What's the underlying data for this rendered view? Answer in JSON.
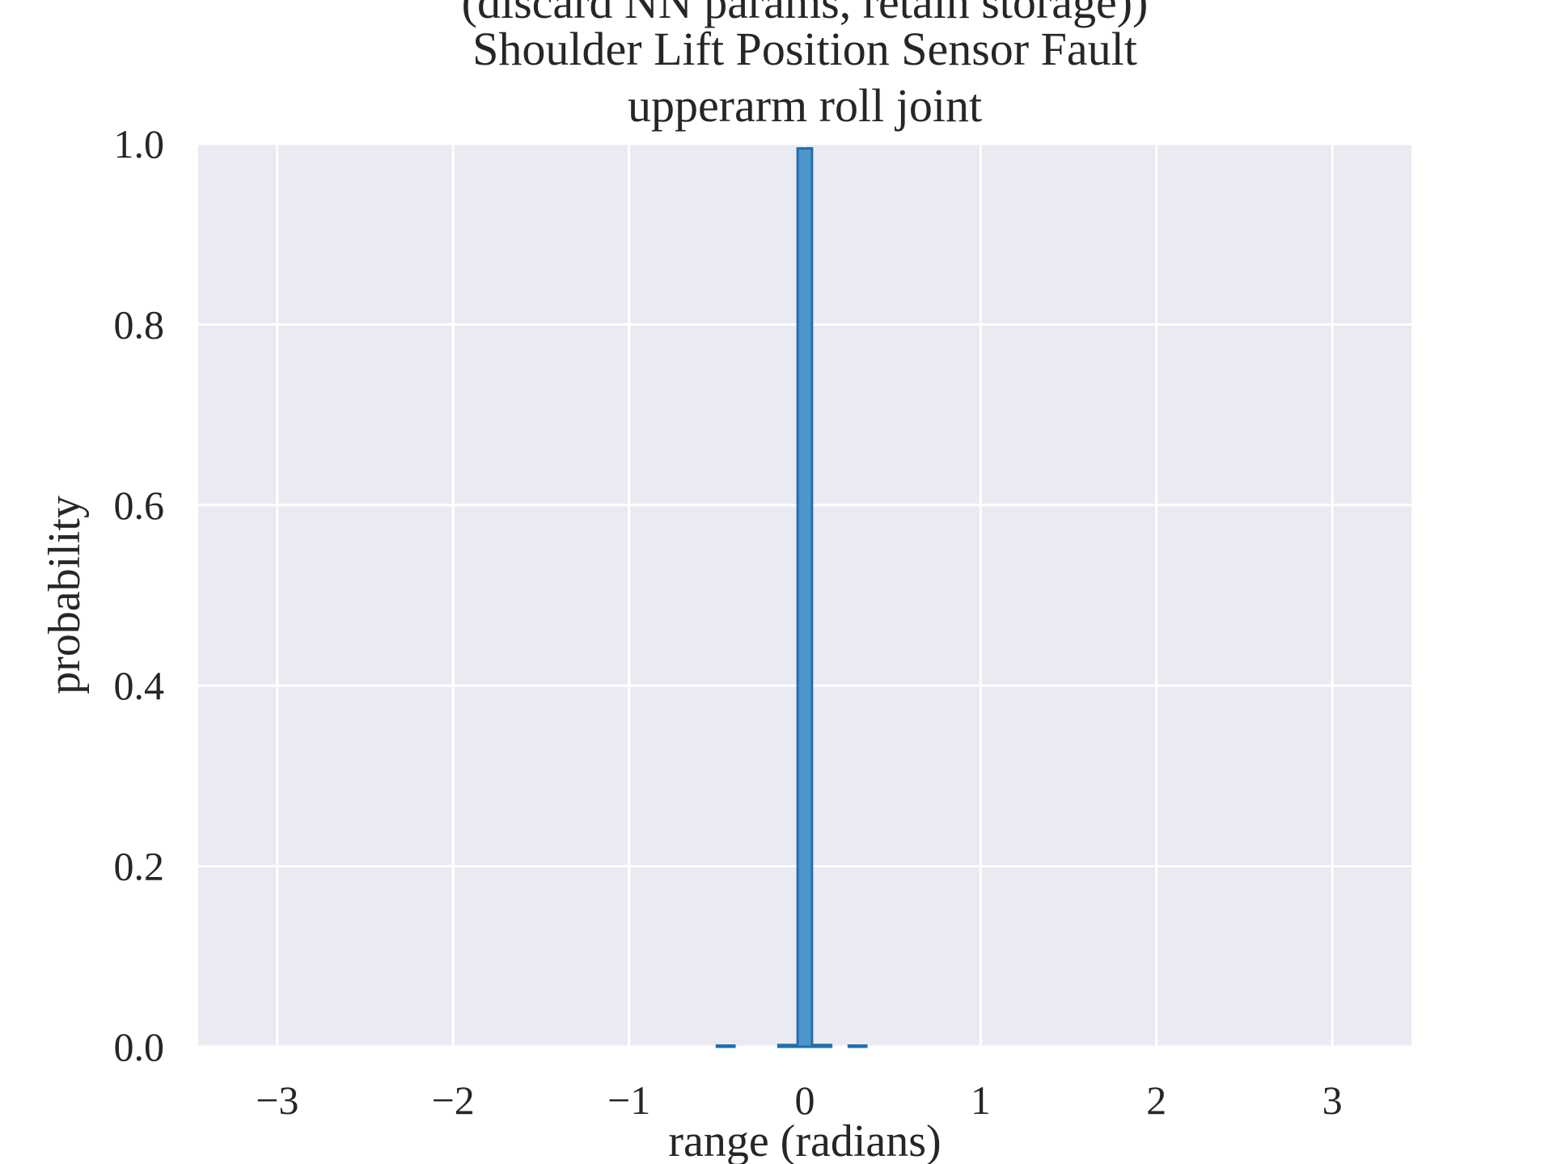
{
  "chart_data": {
    "type": "bar",
    "title_lines": [
      "(discard NN params, retain storage))",
      "Shoulder Lift Position Sensor Fault",
      "upperarm roll joint"
    ],
    "xlabel": "range (radians)",
    "ylabel": "probability",
    "xlim": [
      -3.45,
      3.45
    ],
    "ylim": [
      0,
      1.0
    ],
    "xticks": [
      -3,
      -2,
      -1,
      0,
      1,
      2,
      3
    ],
    "xtick_labels": [
      "−3",
      "−2",
      "−1",
      "0",
      "1",
      "2",
      "3"
    ],
    "yticks": [
      0.0,
      0.2,
      0.4,
      0.6,
      0.8,
      1.0
    ],
    "ytick_labels": [
      "0.0",
      "0.2",
      "0.4",
      "0.6",
      "0.8",
      "1.0"
    ],
    "bin_width": 0.1,
    "bins": [
      {
        "x": -0.45,
        "value": 0.001
      },
      {
        "x": 0.0,
        "value": 0.995
      },
      {
        "x": -0.1,
        "value": 0.002
      },
      {
        "x": 0.1,
        "value": 0.002
      },
      {
        "x": 0.3,
        "value": 0.001
      }
    ],
    "grid": true,
    "colors": {
      "bar_fill": "#4c96c9",
      "bar_edge": "#1f6fb0",
      "plot_background": "#eaeaf2"
    }
  }
}
